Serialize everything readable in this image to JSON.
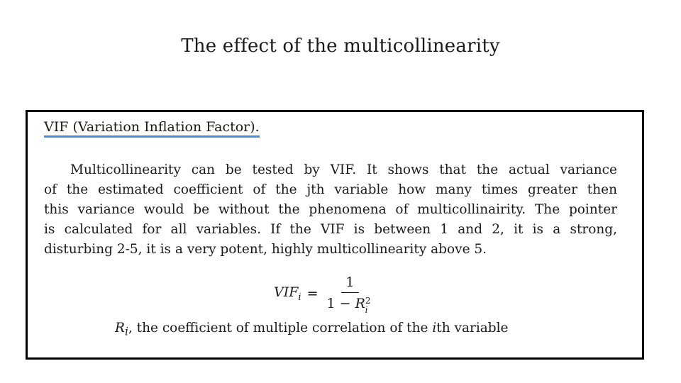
{
  "title": "The effect of the multicollinearity",
  "box": {
    "heading": "VIF (Variation Inflation Factor).",
    "paragraph_lines": [
      "Multicollinearity can be tested by VIF. It shows that the actual variance",
      "of the estimated coefficient of the jth variable how many times greater then",
      "this variance would be without the phenomena of multicollinairity. The pointer",
      "is calculated for all variables. If the VIF is between 1 and 2, it is a strong,",
      "disturbing 2-5, it is a very potent, highly multicollinearity above 5."
    ],
    "formula": {
      "lhs": "VIF",
      "lhs_subscript": "i",
      "equals": "=",
      "numerator": "1",
      "denominator_prefix": "1 − ",
      "denominator_var": "R",
      "denominator_sup": "2",
      "denominator_sub": "i"
    },
    "caption": {
      "var": "R",
      "var_sub": "i",
      "text_before": ", the coefficient of multiple correlation of the ",
      "italic_i": "i",
      "text_after": "th variable"
    }
  },
  "colors": {
    "underline_accent": "#4a8cd6",
    "border": "#000000",
    "text": "#1a1a1a"
  }
}
